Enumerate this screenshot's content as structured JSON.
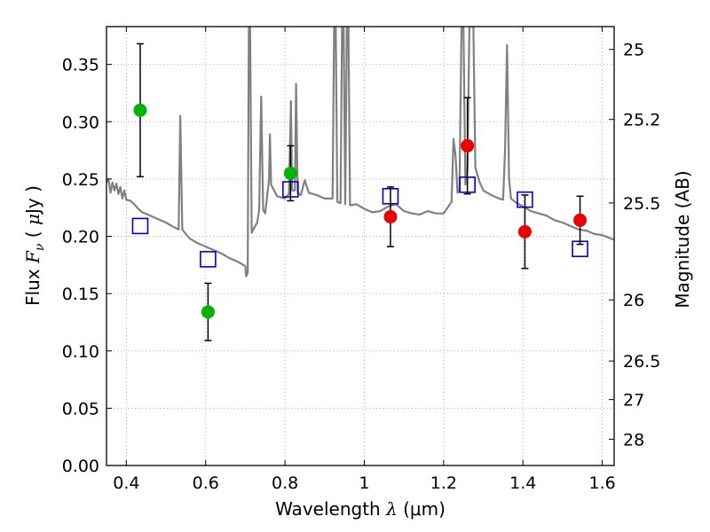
{
  "chart_data": {
    "type": "scatter",
    "xlabel": {
      "prefix": "Wavelength  ",
      "symbol": "λ",
      "unit": " (μm)"
    },
    "ylabel": {
      "prefix": "Flux  ",
      "symbol": "F",
      "sub": "ν",
      "unit_open": "  ( ",
      "unit_mu": "μ",
      "unit_rest": "Jy )"
    },
    "y2label": "Magnitude (AB)",
    "xlim": [
      0.35,
      1.63
    ],
    "ylim": [
      0.0,
      0.383
    ],
    "grid": true,
    "x_ticks": [
      {
        "value": 0.4,
        "label": "0.4"
      },
      {
        "value": 0.6,
        "label": "0.6"
      },
      {
        "value": 0.8,
        "label": "0.8"
      },
      {
        "value": 1.0,
        "label": "1"
      },
      {
        "value": 1.2,
        "label": "1.2"
      },
      {
        "value": 1.4,
        "label": "1.4"
      },
      {
        "value": 1.6,
        "label": "1.6"
      }
    ],
    "y_ticks": [
      {
        "value": 0.0,
        "label": "0.00"
      },
      {
        "value": 0.05,
        "label": "0.05"
      },
      {
        "value": 0.1,
        "label": "0.10"
      },
      {
        "value": 0.15,
        "label": "0.15"
      },
      {
        "value": 0.2,
        "label": "0.20"
      },
      {
        "value": 0.25,
        "label": "0.25"
      },
      {
        "value": 0.3,
        "label": "0.30"
      },
      {
        "value": 0.35,
        "label": "0.35"
      }
    ],
    "y2_ticks": [
      {
        "value": 25,
        "label": "25"
      },
      {
        "value": 25.2,
        "label": "25.2"
      },
      {
        "value": 25.5,
        "label": "25.5"
      },
      {
        "value": 26,
        "label": "26"
      },
      {
        "value": 26.5,
        "label": "26.5"
      },
      {
        "value": 27,
        "label": "27"
      },
      {
        "value": 28,
        "label": "28"
      }
    ],
    "green_points": [
      {
        "x": 0.435,
        "y": 0.31,
        "yerr": 0.058
      },
      {
        "x": 0.606,
        "y": 0.134,
        "yerr": 0.025
      },
      {
        "x": 0.814,
        "y": 0.255,
        "yerr": 0.024
      }
    ],
    "red_points": [
      {
        "x": 1.066,
        "y": 0.217,
        "yerr": 0.026
      },
      {
        "x": 1.26,
        "y": 0.279,
        "yerr": 0.042
      },
      {
        "x": 1.405,
        "y": 0.204,
        "yerr": 0.032
      },
      {
        "x": 1.544,
        "y": 0.214,
        "yerr": 0.021
      }
    ],
    "model_squares": [
      {
        "x": 0.435,
        "y": 0.209
      },
      {
        "x": 0.606,
        "y": 0.18
      },
      {
        "x": 0.814,
        "y": 0.241
      },
      {
        "x": 1.066,
        "y": 0.235
      },
      {
        "x": 1.26,
        "y": 0.245
      },
      {
        "x": 1.405,
        "y": 0.232
      },
      {
        "x": 1.544,
        "y": 0.189
      }
    ],
    "spectrum": [
      [
        0.35,
        0.247
      ],
      [
        0.355,
        0.25
      ],
      [
        0.36,
        0.238
      ],
      [
        0.365,
        0.247
      ],
      [
        0.37,
        0.24
      ],
      [
        0.375,
        0.246
      ],
      [
        0.38,
        0.237
      ],
      [
        0.385,
        0.243
      ],
      [
        0.39,
        0.233
      ],
      [
        0.395,
        0.24
      ],
      [
        0.4,
        0.232
      ],
      [
        0.41,
        0.231
      ],
      [
        0.42,
        0.228
      ],
      [
        0.43,
        0.224
      ],
      [
        0.44,
        0.221
      ],
      [
        0.46,
        0.218
      ],
      [
        0.48,
        0.215
      ],
      [
        0.5,
        0.212
      ],
      [
        0.52,
        0.208
      ],
      [
        0.532,
        0.206
      ],
      [
        0.536,
        0.305
      ],
      [
        0.541,
        0.206
      ],
      [
        0.55,
        0.202
      ],
      [
        0.56,
        0.198
      ],
      [
        0.58,
        0.194
      ],
      [
        0.6,
        0.191
      ],
      [
        0.62,
        0.188
      ],
      [
        0.64,
        0.185
      ],
      [
        0.66,
        0.181
      ],
      [
        0.68,
        0.178
      ],
      [
        0.7,
        0.174
      ],
      [
        0.702,
        0.165
      ],
      [
        0.706,
        0.168
      ],
      [
        0.709,
        0.383
      ],
      [
        0.712,
        0.383
      ],
      [
        0.716,
        0.203
      ],
      [
        0.72,
        0.206
      ],
      [
        0.73,
        0.212
      ],
      [
        0.735,
        0.223
      ],
      [
        0.74,
        0.322
      ],
      [
        0.745,
        0.223
      ],
      [
        0.75,
        0.22
      ],
      [
        0.76,
        0.25
      ],
      [
        0.762,
        0.289
      ],
      [
        0.765,
        0.245
      ],
      [
        0.78,
        0.235
      ],
      [
        0.8,
        0.233
      ],
      [
        0.81,
        0.237
      ],
      [
        0.815,
        0.318
      ],
      [
        0.818,
        0.24
      ],
      [
        0.825,
        0.24
      ],
      [
        0.828,
        0.333
      ],
      [
        0.832,
        0.238
      ],
      [
        0.84,
        0.236
      ],
      [
        0.85,
        0.249
      ],
      [
        0.86,
        0.238
      ],
      [
        0.88,
        0.236
      ],
      [
        0.9,
        0.233
      ],
      [
        0.92,
        0.233
      ],
      [
        0.924,
        0.383
      ],
      [
        0.928,
        0.383
      ],
      [
        0.932,
        0.23
      ],
      [
        0.94,
        0.229
      ],
      [
        0.944,
        0.383
      ],
      [
        0.948,
        0.383
      ],
      [
        0.952,
        0.228
      ],
      [
        0.956,
        0.383
      ],
      [
        0.96,
        0.383
      ],
      [
        0.964,
        0.227
      ],
      [
        0.98,
        0.228
      ],
      [
        1.0,
        0.224
      ],
      [
        1.02,
        0.221
      ],
      [
        1.04,
        0.222
      ],
      [
        1.06,
        0.226
      ],
      [
        1.08,
        0.228
      ],
      [
        1.1,
        0.222
      ],
      [
        1.12,
        0.22
      ],
      [
        1.14,
        0.219
      ],
      [
        1.16,
        0.222
      ],
      [
        1.18,
        0.22
      ],
      [
        1.2,
        0.22
      ],
      [
        1.22,
        0.23
      ],
      [
        1.225,
        0.285
      ],
      [
        1.23,
        0.27
      ],
      [
        1.235,
        0.238
      ],
      [
        1.24,
        0.24
      ],
      [
        1.245,
        0.383
      ],
      [
        1.25,
        0.383
      ],
      [
        1.255,
        0.245
      ],
      [
        1.26,
        0.26
      ],
      [
        1.265,
        0.383
      ],
      [
        1.275,
        0.383
      ],
      [
        1.28,
        0.26
      ],
      [
        1.29,
        0.248
      ],
      [
        1.3,
        0.24
      ],
      [
        1.32,
        0.236
      ],
      [
        1.34,
        0.233
      ],
      [
        1.35,
        0.232
      ],
      [
        1.355,
        0.276
      ],
      [
        1.36,
        0.367
      ],
      [
        1.365,
        0.25
      ],
      [
        1.37,
        0.233
      ],
      [
        1.38,
        0.23
      ],
      [
        1.4,
        0.226
      ],
      [
        1.42,
        0.222
      ],
      [
        1.44,
        0.22
      ],
      [
        1.46,
        0.218
      ],
      [
        1.48,
        0.214
      ],
      [
        1.5,
        0.212
      ],
      [
        1.52,
        0.209
      ],
      [
        1.54,
        0.206
      ],
      [
        1.56,
        0.205
      ],
      [
        1.58,
        0.202
      ],
      [
        1.6,
        0.201
      ],
      [
        1.63,
        0.197
      ]
    ],
    "colors": {
      "spectrum": "#808080",
      "green": "#00b400",
      "red": "#ee0000",
      "square": "#0000cc",
      "errorbar": "#000000",
      "grid": "#9a9a9a"
    }
  }
}
